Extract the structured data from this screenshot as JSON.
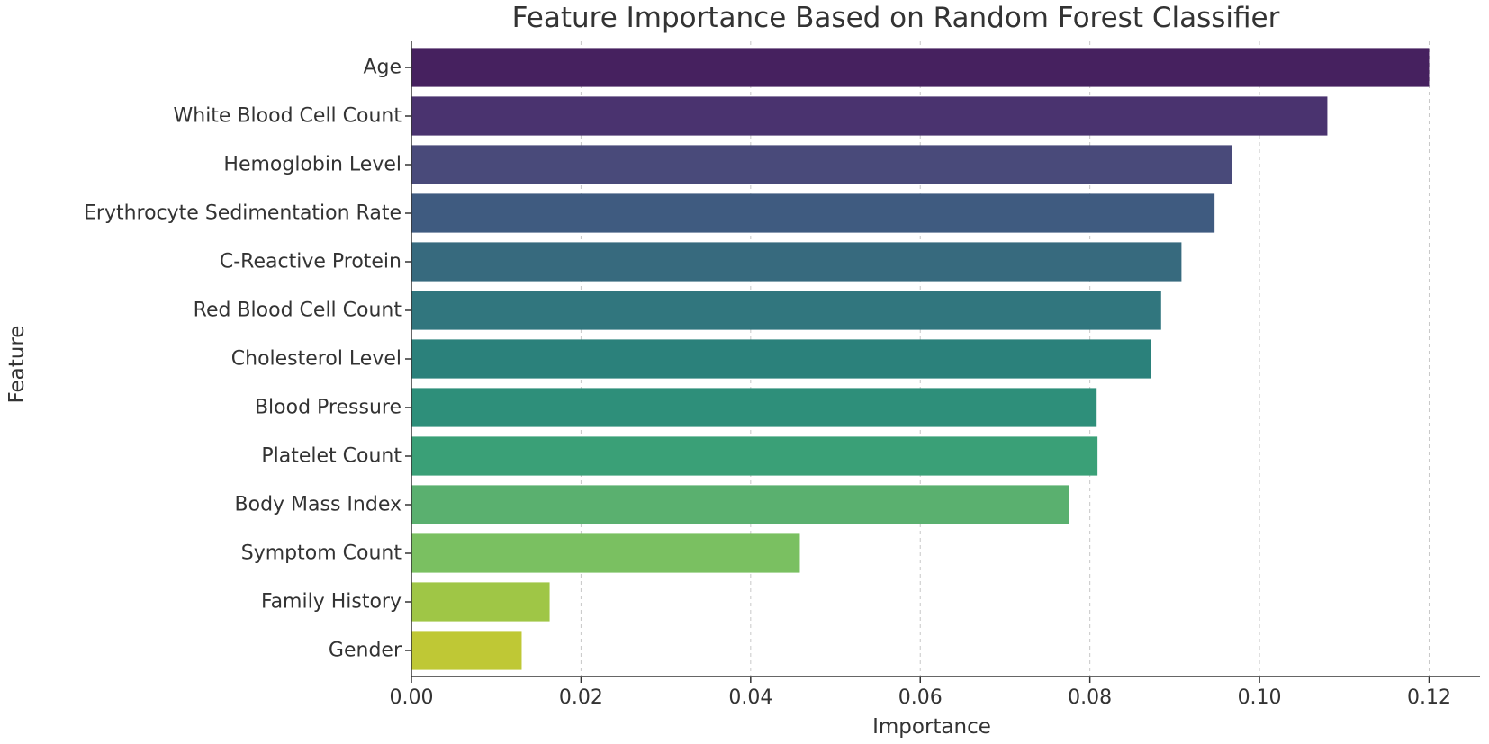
{
  "chart_data": {
    "type": "bar",
    "orientation": "horizontal",
    "title": "Feature Importance Based on Random Forest Classifier",
    "xlabel": "Importance",
    "ylabel": "Feature",
    "xlim": [
      0,
      0.126
    ],
    "xticks": [
      0.0,
      0.02,
      0.04,
      0.06,
      0.08,
      0.1,
      0.12
    ],
    "xtick_labels": [
      "0.00",
      "0.02",
      "0.04",
      "0.06",
      "0.08",
      "0.10",
      "0.12"
    ],
    "grid": "vertical dashed",
    "legend": "none",
    "categories": [
      "Age",
      "White Blood Cell Count",
      "Hemoglobin Level",
      "Erythrocyte Sedimentation Rate",
      "C-Reactive Protein",
      "Red Blood Cell Count",
      "Cholesterol Level",
      "Blood Pressure",
      "Platelet Count",
      "Body Mass Index",
      "Symptom Count",
      "Family History",
      "Gender"
    ],
    "values": [
      0.12,
      0.108,
      0.0968,
      0.0947,
      0.0908,
      0.0884,
      0.0872,
      0.0808,
      0.0809,
      0.0775,
      0.0458,
      0.0163,
      0.013
    ],
    "colors": [
      "#46215f",
      "#4a336f",
      "#494a7a",
      "#3f5b80",
      "#376a7e",
      "#31767e",
      "#2b817b",
      "#2e8f7a",
      "#3aa077",
      "#5ab06f",
      "#7ac061",
      "#9fc646",
      "#bfc835"
    ]
  }
}
